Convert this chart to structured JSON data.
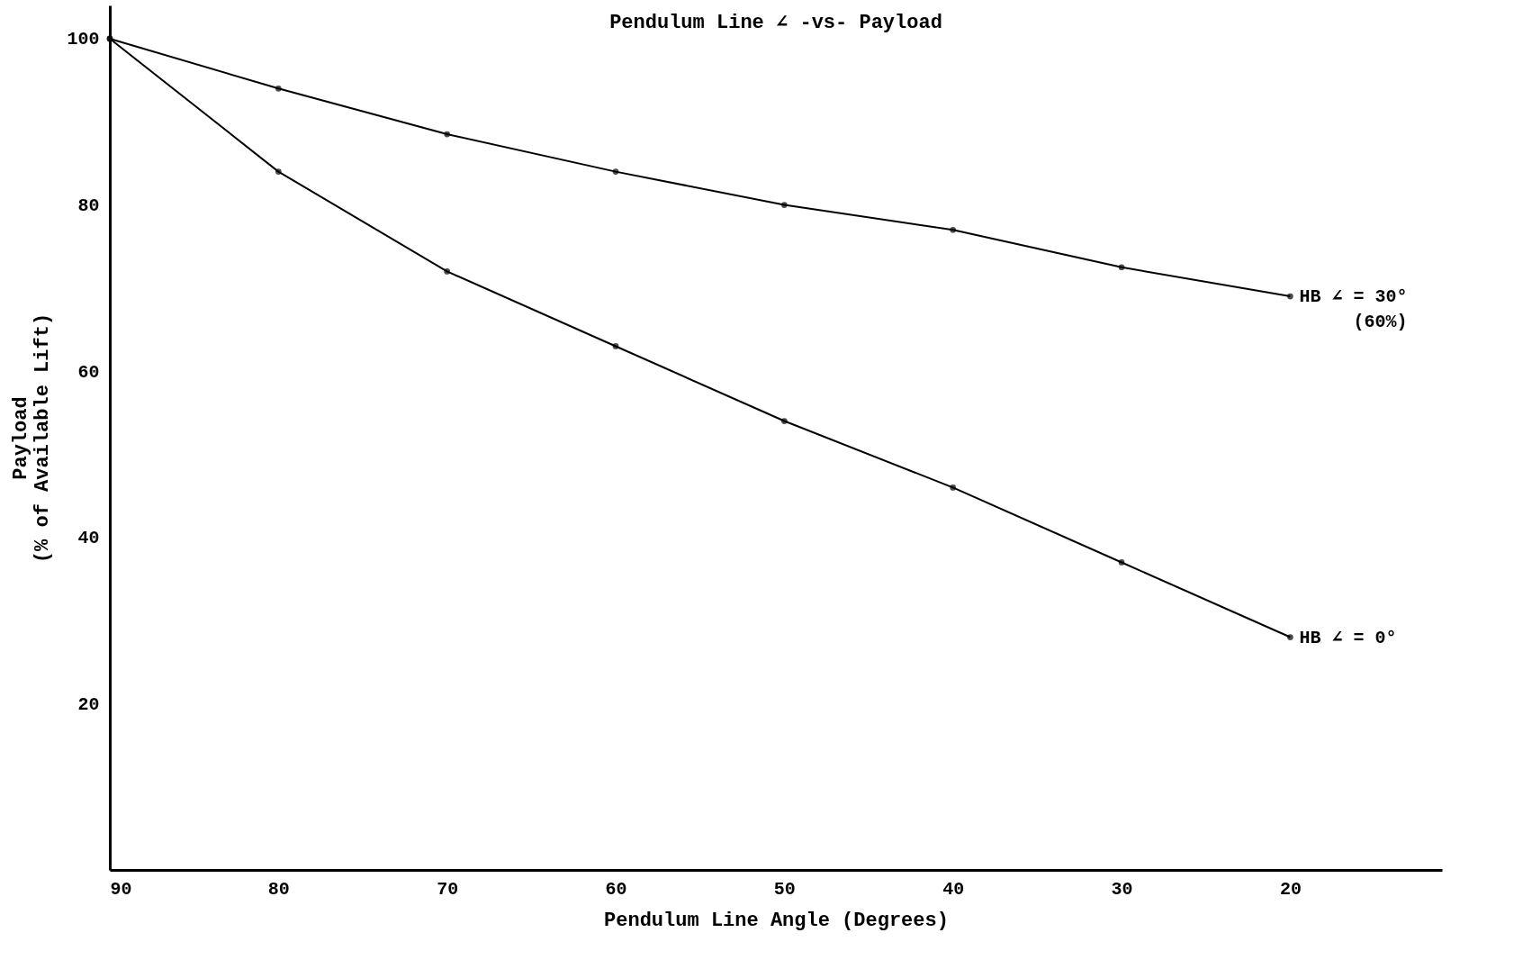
{
  "chart_data": {
    "type": "line",
    "title": "Pendulum Line ∠ -vs- Payload",
    "xlabel": "Pendulum Line Angle (Degrees)",
    "ylabel": "Payload\n(% of Available Lift)",
    "x": [
      90,
      80,
      70,
      60,
      50,
      40,
      30,
      20
    ],
    "series": [
      {
        "name": "HB ∠ = 30°",
        "color": "#000000",
        "values": [
          100,
          94,
          88.5,
          84,
          80,
          77,
          72.5,
          69
        ]
      },
      {
        "name": "HB ∠ = 0°",
        "color": "#000000",
        "values": [
          100,
          84,
          72,
          63,
          54,
          46,
          37,
          28
        ]
      }
    ],
    "annotations": [
      "(60%)"
    ],
    "xlim": [
      90,
      11
    ],
    "ylim": [
      0,
      104
    ],
    "xticks": [
      90,
      80,
      70,
      60,
      50,
      40,
      30,
      20
    ],
    "yticks": [
      20,
      40,
      60,
      80,
      100
    ],
    "grid": false,
    "legend": false,
    "marker": "circle",
    "line_style": "solid"
  }
}
